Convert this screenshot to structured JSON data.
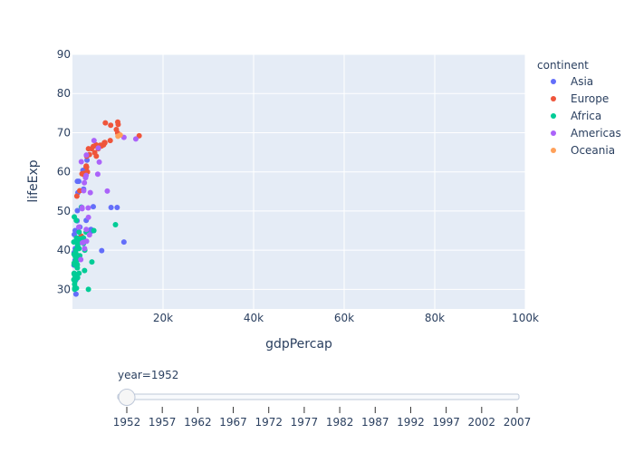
{
  "chart_data": {
    "type": "scatter",
    "xlabel": "gdpPercap",
    "ylabel": "lifeExp",
    "xlim": [
      0,
      100000
    ],
    "ylim": [
      25,
      90
    ],
    "x_ticks": [
      20000,
      40000,
      60000,
      80000,
      100000
    ],
    "x_tick_labels": [
      "20k",
      "40k",
      "60k",
      "80k",
      "100k"
    ],
    "y_ticks": [
      30,
      40,
      50,
      60,
      70,
      80,
      90
    ],
    "y_tick_labels": [
      "30",
      "40",
      "50",
      "60",
      "70",
      "80",
      "90"
    ],
    "grid": true,
    "plot_background": "#e5ecf6",
    "legend": {
      "title": "continent",
      "placement": "right",
      "entries": [
        {
          "name": "Asia",
          "color": "#636efa"
        },
        {
          "name": "Europe",
          "color": "#ef553b"
        },
        {
          "name": "Africa",
          "color": "#00cc96"
        },
        {
          "name": "Americas",
          "color": "#ab63fa"
        },
        {
          "name": "Oceania",
          "color": "#ffa15a"
        }
      ]
    },
    "series": [
      {
        "name": "Asia",
        "color": "#636efa",
        "points": [
          [
            779,
            28.8
          ],
          [
            9867,
            50.9
          ],
          [
            684,
            37.5
          ],
          [
            368,
            39.4
          ],
          [
            400,
            44.0
          ],
          [
            3054,
            60.96
          ],
          [
            547,
            37.4
          ],
          [
            750,
            37.5
          ],
          [
            3035,
            47.6
          ],
          [
            4130,
            44.8
          ],
          [
            4087,
            45.3
          ],
          [
            3217,
            63.0
          ],
          [
            1547,
            43.2
          ],
          [
            1089,
            50.1
          ],
          [
            1031,
            47.5
          ],
          [
            2469,
            55.6
          ],
          [
            1832,
            42.2
          ],
          [
            786,
            36.3
          ],
          [
            331,
            36.2
          ],
          [
            546,
            36.2
          ],
          [
            1828,
            43.4
          ],
          [
            684,
            36.3
          ],
          [
            1273,
            37.6
          ],
          [
            2315,
            60.4
          ],
          [
            6460,
            39.9
          ],
          [
            1083,
            57.6
          ],
          [
            1398,
            57.6
          ],
          [
            1643,
            45.9
          ],
          [
            4600,
            51.1
          ],
          [
            605,
            40.4
          ],
          [
            2281,
            43.2
          ],
          [
            781,
            32.5
          ],
          [
            1207,
            54.7
          ],
          [
            595,
            45.0
          ],
          [
            8527,
            50.9
          ],
          [
            11367,
            42.1
          ]
        ]
      },
      {
        "name": "Europe",
        "color": "#ef553b",
        "points": [
          [
            1601,
            55.2
          ],
          [
            6137,
            66.8
          ],
          [
            8343,
            68.0
          ],
          [
            973,
            53.8
          ],
          [
            2444,
            59.6
          ],
          [
            3119,
            61.2
          ],
          [
            6876,
            66.9
          ],
          [
            9692,
            70.8
          ],
          [
            6425,
            66.6
          ],
          [
            7030,
            67.4
          ],
          [
            7144,
            67.5
          ],
          [
            3531,
            65.9
          ],
          [
            5263,
            64.0
          ],
          [
            7268,
            72.5
          ],
          [
            5211,
            66.9
          ],
          [
            4215,
            65.9
          ],
          [
            5693,
            65.9
          ],
          [
            2648,
            59.2
          ],
          [
            7144,
            67.4
          ],
          [
            10095,
            72.1
          ],
          [
            3041,
            61.5
          ],
          [
            3068,
            59.8
          ],
          [
            4605,
            66.5
          ],
          [
            3318,
            60.0
          ],
          [
            4916,
            64.9
          ],
          [
            3144,
            64.0
          ],
          [
            3758,
            64.4
          ],
          [
            8442,
            71.9
          ],
          [
            9980,
            69.9
          ],
          [
            1969,
            43.6
          ],
          [
            14734,
            69.2
          ],
          [
            10001,
            72.7
          ],
          [
            3023,
            61.3
          ],
          [
            2100,
            59.5
          ]
        ]
      },
      {
        "name": "Africa",
        "color": "#00cc96",
        "points": [
          [
            2449,
            43.1
          ],
          [
            3521,
            30.0
          ],
          [
            1063,
            38.2
          ],
          [
            851,
            47.6
          ],
          [
            543,
            32.0
          ],
          [
            339,
            39.0
          ],
          [
            1173,
            38.5
          ],
          [
            1071,
            35.5
          ],
          [
            1179,
            38.1
          ],
          [
            1103,
            40.7
          ],
          [
            781,
            39.1
          ],
          [
            2126,
            42.1
          ],
          [
            1389,
            40.5
          ],
          [
            2670,
            34.8
          ],
          [
            1419,
            41.9
          ],
          [
            375,
            34.1
          ],
          [
            362,
            34.0
          ],
          [
            4293,
            37.0
          ],
          [
            485,
            30.0
          ],
          [
            911,
            43.1
          ],
          [
            510,
            33.6
          ],
          [
            300,
            32.5
          ],
          [
            854,
            42.3
          ],
          [
            299,
            42.1
          ],
          [
            576,
            38.5
          ],
          [
            2388,
            42.6
          ],
          [
            1443,
            34.1
          ],
          [
            369,
            36.7
          ],
          [
            452,
            36.3
          ],
          [
            744,
            37.5
          ],
          [
            1967,
            50.98
          ],
          [
            1688,
            42.9
          ],
          [
            468,
            31.3
          ],
          [
            2424,
            41.7
          ],
          [
            761,
            37.4
          ],
          [
            1077,
            36.3
          ],
          [
            2719,
            40.0
          ],
          [
            493,
            30.3
          ],
          [
            880,
            37.3
          ],
          [
            1451,
            40.4
          ],
          [
            879,
            30.3
          ],
          [
            1136,
            32.98
          ],
          [
            4725,
            45.0
          ],
          [
            1615,
            38.6
          ],
          [
            1148,
            41.2
          ],
          [
            860,
            38.6
          ],
          [
            1468,
            44.6
          ],
          [
            734,
            39.98
          ],
          [
            1147,
            42.0
          ],
          [
            406,
            48.5
          ],
          [
            3010,
            44.6
          ],
          [
            9500,
            46.5
          ]
        ]
      },
      {
        "name": "Americas",
        "color": "#ab63fa",
        "points": [
          [
            5911,
            62.5
          ],
          [
            2677,
            40.4
          ],
          [
            2109,
            50.9
          ],
          [
            11367,
            68.8
          ],
          [
            3940,
            54.7
          ],
          [
            2144,
            50.6
          ],
          [
            2627,
            57.2
          ],
          [
            5587,
            59.4
          ],
          [
            1398,
            45.9
          ],
          [
            3522,
            48.4
          ],
          [
            3048,
            45.3
          ],
          [
            2428,
            42.0
          ],
          [
            1840,
            37.6
          ],
          [
            2194,
            41.9
          ],
          [
            2899,
            58.5
          ],
          [
            3478,
            50.8
          ],
          [
            3112,
            42.3
          ],
          [
            2480,
            55.2
          ],
          [
            1953,
            62.6
          ],
          [
            3758,
            43.9
          ],
          [
            3082,
            64.3
          ],
          [
            3023,
            59.1
          ],
          [
            4765,
            68.0
          ],
          [
            5717,
            66.1
          ],
          [
            13990,
            68.4
          ],
          [
            7690,
            55.1
          ]
        ]
      },
      {
        "name": "Oceania",
        "color": "#ffa15a",
        "points": [
          [
            10040,
            69.1
          ],
          [
            10557,
            69.4
          ]
        ]
      }
    ]
  },
  "slider": {
    "current_label": "year=1952",
    "active_step": 0,
    "steps": [
      "1952",
      "1957",
      "1962",
      "1967",
      "1972",
      "1977",
      "1982",
      "1987",
      "1992",
      "1997",
      "2002",
      "2007"
    ]
  }
}
